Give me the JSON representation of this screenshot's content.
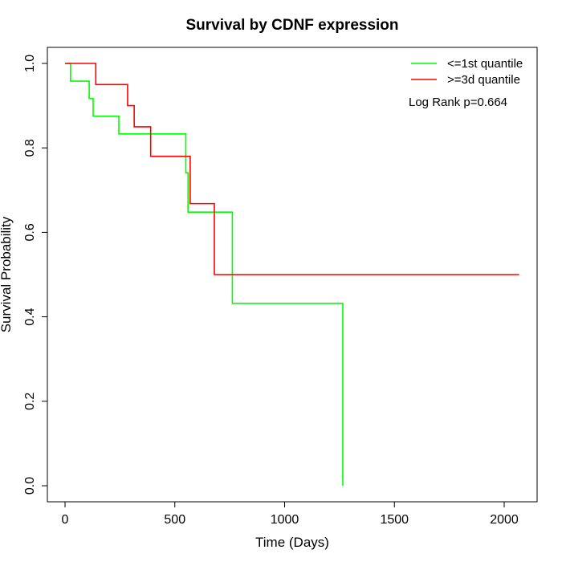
{
  "chart_data": {
    "type": "line",
    "title": "Survival by CDNF expression",
    "xlabel": "Time (Days)",
    "ylabel": "Survival Probability",
    "xlim": [
      0,
      2070
    ],
    "ylim": [
      0,
      1.0
    ],
    "x_ticks": [
      0,
      500,
      1000,
      1500,
      2000
    ],
    "x_tick_labels": [
      "0",
      "500",
      "1000",
      "1500",
      "2000"
    ],
    "y_ticks": [
      0.0,
      0.2,
      0.4,
      0.6,
      0.8,
      1.0
    ],
    "y_tick_labels": [
      "0.0",
      "0.2",
      "0.4",
      "0.6",
      "0.8",
      "1.0"
    ],
    "grid": false,
    "legend_position": "top-right",
    "annotation": "Log Rank p=0.664",
    "series": [
      {
        "name": "<=1st quantile",
        "color": "#00ff00",
        "step": "post",
        "x": [
          0,
          25,
          110,
          128,
          245,
          550,
          560,
          762,
          1265,
          1265
        ],
        "y": [
          1.0,
          0.958,
          0.917,
          0.875,
          0.833,
          0.741,
          0.648,
          0.432,
          0.432,
          0.0
        ]
      },
      {
        "name": ">=3d quantile",
        "color": "#ff0000",
        "step": "post",
        "x": [
          0,
          140,
          285,
          315,
          390,
          570,
          680,
          2068
        ],
        "y": [
          1.0,
          0.95,
          0.9,
          0.85,
          0.78,
          0.668,
          0.5,
          0.5
        ]
      }
    ]
  }
}
